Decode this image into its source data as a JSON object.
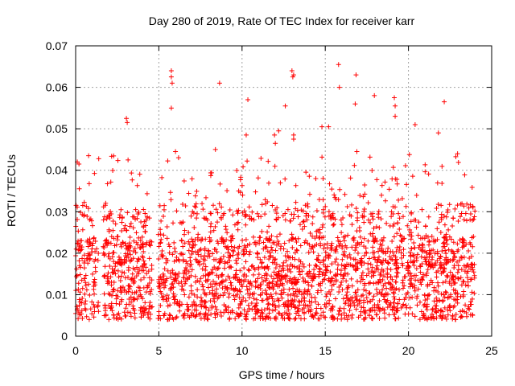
{
  "chart_data": {
    "type": "scatter",
    "title": "Day 280 of 2019, Rate Of TEC Index for receiver karr",
    "xlabel": "GPS time / hours",
    "ylabel": "ROTI / TECUs",
    "xlim": [
      0,
      25
    ],
    "ylim": [
      0,
      0.07
    ],
    "x_ticks": [
      0,
      5,
      10,
      15,
      20,
      25
    ],
    "y_ticks": [
      0,
      0.01,
      0.02,
      0.03,
      0.04,
      0.05,
      0.06,
      0.07
    ],
    "x_tick_labels": [
      "0",
      "5",
      "10",
      "15",
      "20",
      "25"
    ],
    "y_tick_labels": [
      "0",
      "0.01",
      "0.02",
      "0.03",
      "0.04",
      "0.05",
      "0.06",
      "0.07"
    ],
    "grid": true,
    "marker": "+",
    "color": "#ff0000",
    "x_gaps": [
      [
        1.4,
        1.65
      ],
      [
        4.6,
        4.95
      ],
      [
        24.0,
        25.0
      ]
    ],
    "estimated_points": 2600,
    "outliers": [
      {
        "x": 0.1,
        "y": 0.042
      },
      {
        "x": 0.2,
        "y": 0.0415
      },
      {
        "x": 3.05,
        "y": 0.0525
      },
      {
        "x": 3.1,
        "y": 0.0515
      },
      {
        "x": 3.15,
        "y": 0.0425
      },
      {
        "x": 5.75,
        "y": 0.064
      },
      {
        "x": 5.75,
        "y": 0.0625
      },
      {
        "x": 5.8,
        "y": 0.061
      },
      {
        "x": 5.75,
        "y": 0.055
      },
      {
        "x": 8.65,
        "y": 0.061
      },
      {
        "x": 10.35,
        "y": 0.057
      },
      {
        "x": 12.6,
        "y": 0.0555
      },
      {
        "x": 13.0,
        "y": 0.064
      },
      {
        "x": 13.05,
        "y": 0.0625
      },
      {
        "x": 13.1,
        "y": 0.063
      },
      {
        "x": 15.8,
        "y": 0.0655
      },
      {
        "x": 15.85,
        "y": 0.06
      },
      {
        "x": 16.85,
        "y": 0.063
      },
      {
        "x": 16.8,
        "y": 0.056
      },
      {
        "x": 17.95,
        "y": 0.058
      },
      {
        "x": 19.15,
        "y": 0.0575
      },
      {
        "x": 19.2,
        "y": 0.0555
      },
      {
        "x": 19.2,
        "y": 0.053
      },
      {
        "x": 20.4,
        "y": 0.051
      },
      {
        "x": 22.15,
        "y": 0.0565
      },
      {
        "x": 14.8,
        "y": 0.0505
      },
      {
        "x": 15.2,
        "y": 0.0505
      },
      {
        "x": 12.2,
        "y": 0.0495
      },
      {
        "x": 11.95,
        "y": 0.0485
      },
      {
        "x": 21.8,
        "y": 0.049
      },
      {
        "x": 10.25,
        "y": 0.0485
      },
      {
        "x": 13.1,
        "y": 0.0485
      },
      {
        "x": 13.1,
        "y": 0.0475
      },
      {
        "x": 12.0,
        "y": 0.0465
      },
      {
        "x": 16.9,
        "y": 0.0445
      },
      {
        "x": 8.4,
        "y": 0.045
      },
      {
        "x": 6.0,
        "y": 0.0445
      },
      {
        "x": 22.95,
        "y": 0.044
      }
    ]
  }
}
